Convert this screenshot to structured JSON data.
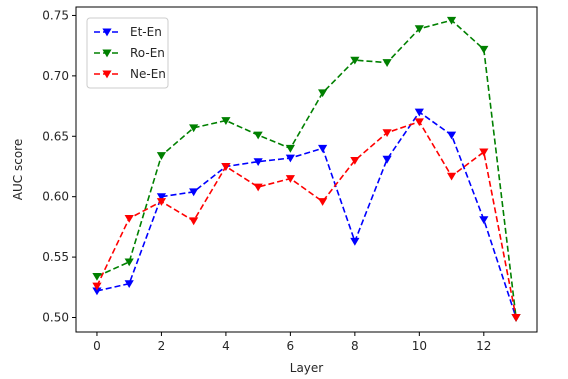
{
  "chart_data": {
    "type": "line",
    "title": "",
    "xlabel": "Layer",
    "ylabel": "AUC score",
    "xlim": [
      -0.65,
      13.65
    ],
    "ylim": [
      0.488,
      0.757
    ],
    "xticks": [
      0,
      2,
      4,
      6,
      8,
      10,
      12
    ],
    "yticks": [
      0.5,
      0.55,
      0.6,
      0.65,
      0.7,
      0.75
    ],
    "ytick_labels": [
      "0.50",
      "0.55",
      "0.60",
      "0.65",
      "0.70",
      "0.75"
    ],
    "grid": false,
    "legend_position": "top-left",
    "x": [
      0,
      1,
      2,
      3,
      4,
      5,
      6,
      7,
      8,
      9,
      10,
      11,
      12,
      13
    ],
    "series": [
      {
        "name": "Et-En",
        "color": "#0000ff",
        "line_style": "dashed",
        "marker": "triangle-down",
        "values": [
          0.522,
          0.528,
          0.6,
          0.604,
          0.625,
          0.629,
          0.632,
          0.64,
          0.563,
          0.631,
          0.67,
          0.651,
          0.581,
          0.5
        ]
      },
      {
        "name": "Ro-En",
        "color": "#008000",
        "line_style": "dashed",
        "marker": "triangle-down",
        "values": [
          0.534,
          0.546,
          0.634,
          0.657,
          0.663,
          0.651,
          0.64,
          0.686,
          0.713,
          0.711,
          0.739,
          0.746,
          0.722,
          0.5
        ]
      },
      {
        "name": "Ne-En",
        "color": "#ff0000",
        "line_style": "dashed",
        "marker": "triangle-down",
        "values": [
          0.526,
          0.582,
          0.596,
          0.58,
          0.625,
          0.608,
          0.615,
          0.596,
          0.63,
          0.653,
          0.662,
          0.617,
          0.637,
          0.5
        ]
      }
    ]
  }
}
